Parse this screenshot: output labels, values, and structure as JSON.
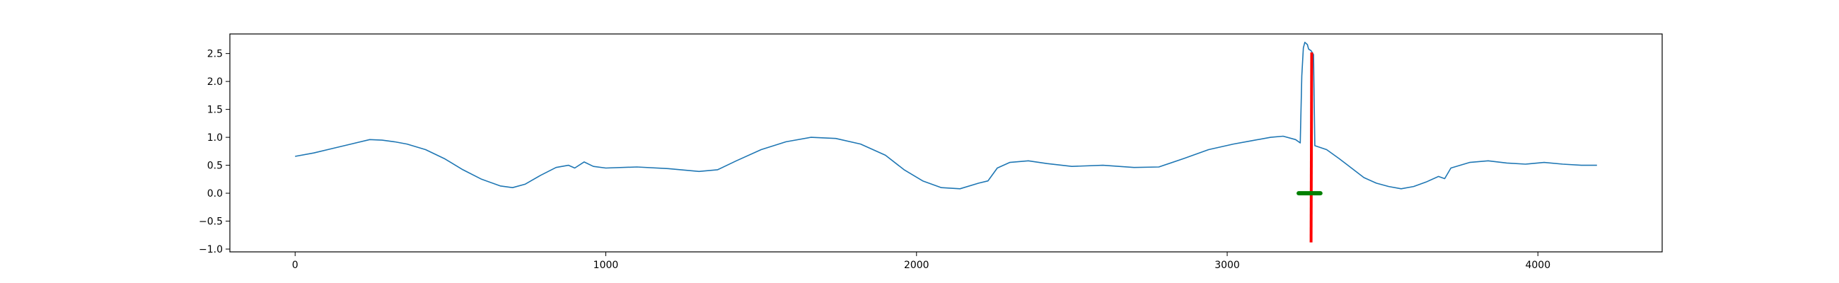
{
  "chart_data": {
    "type": "line",
    "title": "",
    "xlabel": "",
    "ylabel": "",
    "xlim": [
      -210,
      4400
    ],
    "ylim": [
      -1.05,
      2.85
    ],
    "grid": false,
    "x_ticks": [
      0,
      1000,
      2000,
      3000,
      4000
    ],
    "x_tick_labels": [
      "0",
      "1000",
      "2000",
      "3000",
      "4000"
    ],
    "y_ticks": [
      -1.0,
      -0.5,
      0.0,
      0.5,
      1.0,
      1.5,
      2.0,
      2.5
    ],
    "y_tick_labels": [
      "−1.0",
      "−0.5",
      "0.0",
      "0.5",
      "1.0",
      "1.5",
      "2.0",
      "2.5"
    ],
    "series": [
      {
        "color": "#1f77b4",
        "points": [
          [
            0,
            0.66
          ],
          [
            60,
            0.72
          ],
          [
            120,
            0.8
          ],
          [
            180,
            0.88
          ],
          [
            240,
            0.96
          ],
          [
            280,
            0.95
          ],
          [
            320,
            0.92
          ],
          [
            360,
            0.88
          ],
          [
            420,
            0.78
          ],
          [
            480,
            0.62
          ],
          [
            540,
            0.42
          ],
          [
            600,
            0.25
          ],
          [
            660,
            0.13
          ],
          [
            700,
            0.1
          ],
          [
            740,
            0.16
          ],
          [
            790,
            0.32
          ],
          [
            840,
            0.46
          ],
          [
            880,
            0.5
          ],
          [
            900,
            0.45
          ],
          [
            930,
            0.56
          ],
          [
            960,
            0.48
          ],
          [
            1000,
            0.45
          ],
          [
            1100,
            0.47
          ],
          [
            1200,
            0.44
          ],
          [
            1300,
            0.39
          ],
          [
            1360,
            0.42
          ],
          [
            1420,
            0.58
          ],
          [
            1500,
            0.78
          ],
          [
            1580,
            0.92
          ],
          [
            1660,
            1.0
          ],
          [
            1740,
            0.98
          ],
          [
            1820,
            0.88
          ],
          [
            1900,
            0.68
          ],
          [
            1960,
            0.42
          ],
          [
            2020,
            0.22
          ],
          [
            2080,
            0.1
          ],
          [
            2140,
            0.08
          ],
          [
            2200,
            0.18
          ],
          [
            2230,
            0.22
          ],
          [
            2260,
            0.45
          ],
          [
            2300,
            0.55
          ],
          [
            2360,
            0.58
          ],
          [
            2420,
            0.53
          ],
          [
            2500,
            0.48
          ],
          [
            2600,
            0.5
          ],
          [
            2700,
            0.46
          ],
          [
            2780,
            0.47
          ],
          [
            2860,
            0.62
          ],
          [
            2940,
            0.78
          ],
          [
            3020,
            0.88
          ],
          [
            3080,
            0.94
          ],
          [
            3140,
            1.0
          ],
          [
            3180,
            1.02
          ],
          [
            3220,
            0.96
          ],
          [
            3235,
            0.9
          ],
          [
            3240,
            2.1
          ],
          [
            3245,
            2.6
          ],
          [
            3250,
            2.7
          ],
          [
            3258,
            2.66
          ],
          [
            3262,
            2.58
          ],
          [
            3270,
            2.55
          ],
          [
            3278,
            2.48
          ],
          [
            3282,
            0.85
          ],
          [
            3320,
            0.78
          ],
          [
            3360,
            0.62
          ],
          [
            3400,
            0.45
          ],
          [
            3440,
            0.28
          ],
          [
            3480,
            0.18
          ],
          [
            3520,
            0.12
          ],
          [
            3560,
            0.08
          ],
          [
            3600,
            0.12
          ],
          [
            3640,
            0.2
          ],
          [
            3680,
            0.3
          ],
          [
            3700,
            0.26
          ],
          [
            3720,
            0.45
          ],
          [
            3780,
            0.55
          ],
          [
            3840,
            0.58
          ],
          [
            3900,
            0.54
          ],
          [
            3960,
            0.52
          ],
          [
            4020,
            0.55
          ],
          [
            4080,
            0.52
          ],
          [
            4140,
            0.5
          ],
          [
            4190,
            0.5
          ]
        ]
      },
      {
        "color": "#ff0000",
        "points": [
          [
            3272,
            2.52
          ],
          [
            3270,
            -0.88
          ]
        ]
      },
      {
        "color": "#008000",
        "points": [
          [
            3230,
            0.0
          ],
          [
            3300,
            0.0
          ]
        ]
      }
    ]
  }
}
